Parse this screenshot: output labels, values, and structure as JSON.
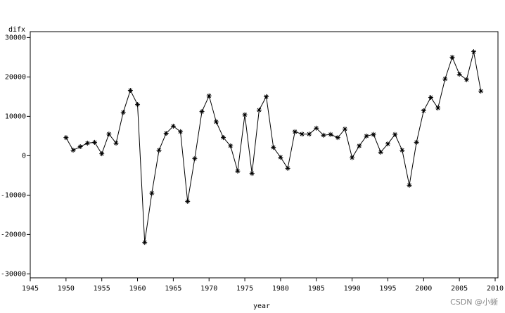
{
  "chart_data": {
    "type": "line",
    "y_label": "difx",
    "x_label": "year",
    "watermark": "CSDN @小蜥",
    "color": "#000000",
    "marker": "asterisk",
    "x": [
      1950,
      1951,
      1952,
      1953,
      1954,
      1955,
      1956,
      1957,
      1958,
      1959,
      1960,
      1961,
      1962,
      1963,
      1964,
      1965,
      1966,
      1967,
      1968,
      1969,
      1970,
      1971,
      1972,
      1973,
      1974,
      1975,
      1976,
      1977,
      1978,
      1979,
      1980,
      1981,
      1982,
      1983,
      1984,
      1985,
      1986,
      1987,
      1988,
      1989,
      1990,
      1991,
      1992,
      1993,
      1994,
      1995,
      1996,
      1997,
      1998,
      1999,
      2000,
      2001,
      2002,
      2003,
      2004,
      2005,
      2006,
      2007,
      2008
    ],
    "values": [
      4600,
      1400,
      2300,
      3200,
      3400,
      500,
      5500,
      3200,
      11000,
      16600,
      13000,
      -22000,
      -9500,
      1400,
      5700,
      7500,
      6100,
      -11600,
      -700,
      11200,
      15200,
      8600,
      4600,
      2500,
      -3900,
      10400,
      -4500,
      11600,
      15000,
      2100,
      -400,
      -3200,
      6100,
      5500,
      5500,
      7000,
      5200,
      5400,
      4600,
      6800,
      -500,
      2500,
      5000,
      5400,
      900,
      3000,
      5400,
      1400,
      -7500,
      3400,
      11400,
      14800,
      12100,
      19500,
      25000,
      20700,
      19300,
      26400,
      16400
    ],
    "xlim": [
      1945,
      2010
    ],
    "xticks": [
      1945,
      1950,
      1955,
      1960,
      1965,
      1970,
      1975,
      1980,
      1985,
      1990,
      1995,
      2000,
      2005,
      2010
    ],
    "ylim": [
      -31000,
      31500
    ],
    "yticks": [
      -30000,
      -20000,
      -10000,
      0,
      10000,
      20000,
      30000
    ]
  }
}
